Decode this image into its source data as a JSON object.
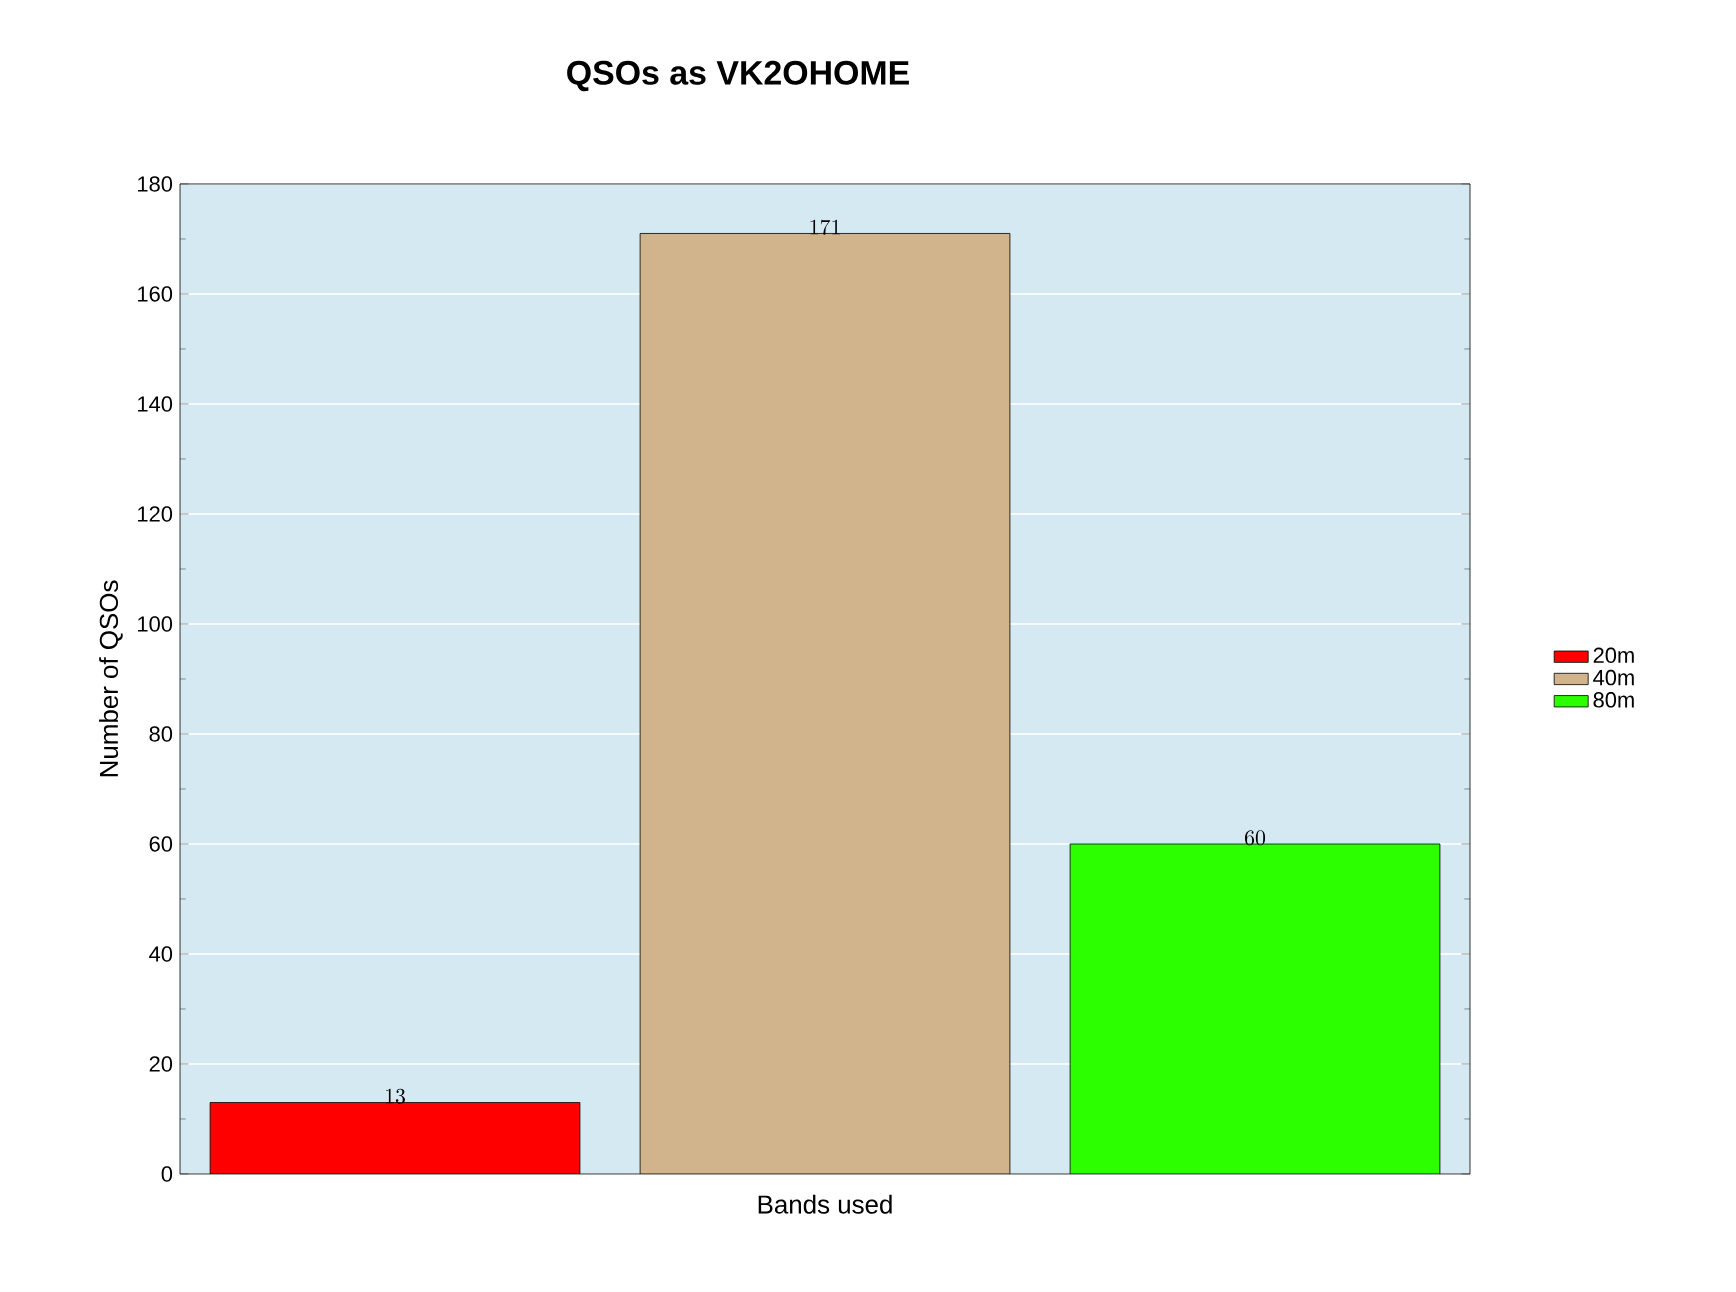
{
  "chart_data": {
    "type": "bar",
    "title": "QSOs as VK2OHOME",
    "xlabel": "Bands used",
    "ylabel": "Number of QSOs",
    "categories": [
      null,
      null,
      null
    ],
    "series": [
      {
        "name": "20m",
        "color": "#ff0000",
        "values": [
          13,
          null,
          null
        ]
      },
      {
        "name": "40m",
        "color": "#d2b48c",
        "values": [
          null,
          171,
          null
        ]
      },
      {
        "name": "80m",
        "color": "#2cff00",
        "values": [
          null,
          null,
          60
        ]
      }
    ],
    "ylim": [
      0,
      180
    ],
    "yticks": [
      0,
      20,
      40,
      60,
      80,
      100,
      120,
      140,
      160,
      180
    ],
    "grid": "y",
    "legend": "right",
    "data_labels": true
  }
}
